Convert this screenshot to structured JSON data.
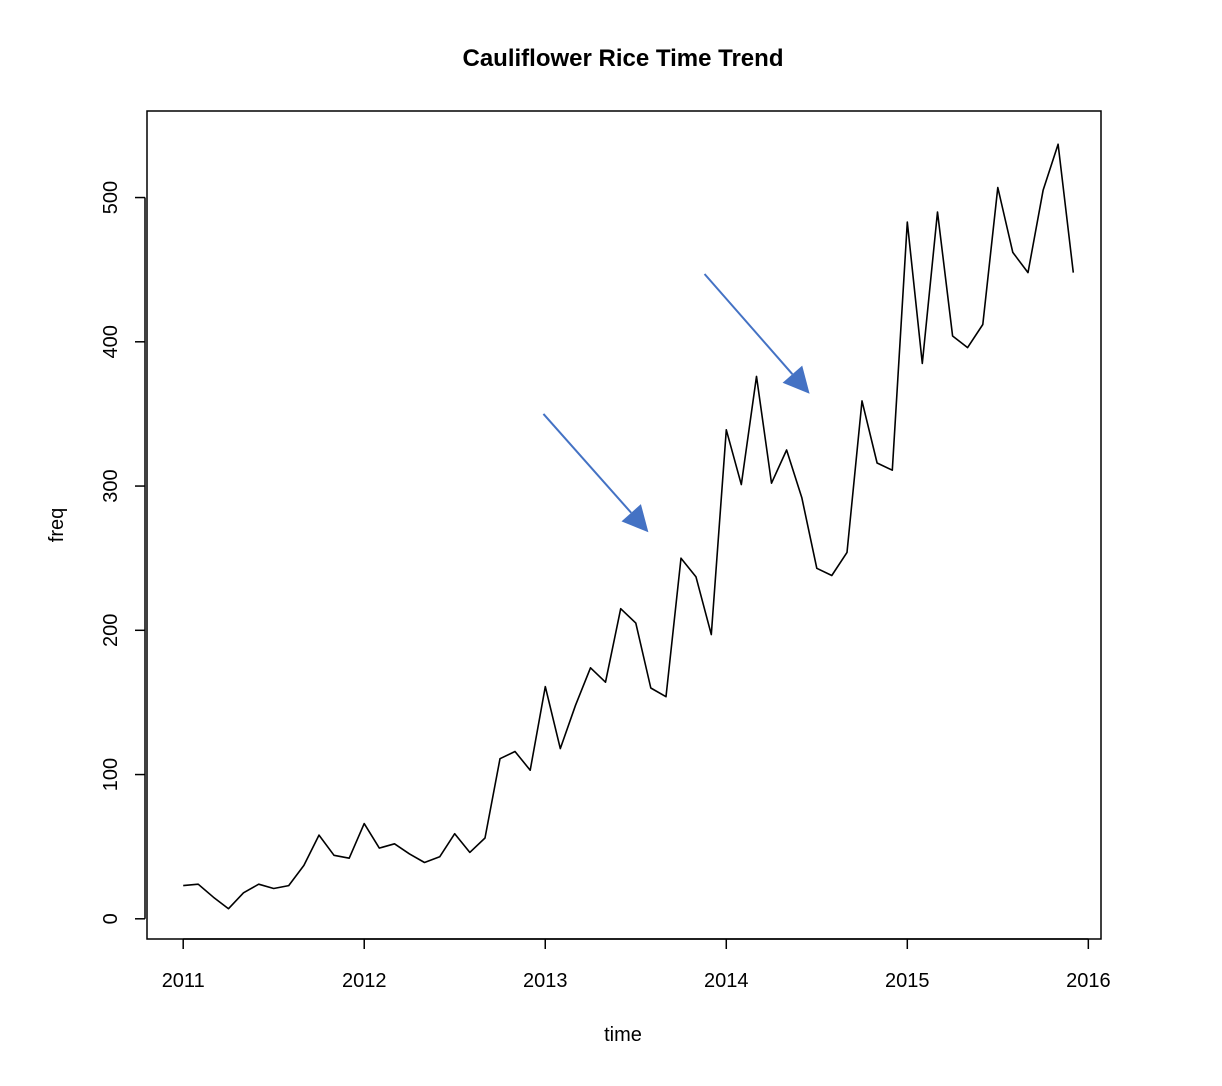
{
  "chart_data": {
    "type": "line",
    "title": "Cauliflower Rice Time Trend",
    "xlabel": "time",
    "ylabel": "freq",
    "xlim": [
      2010.8,
      2016.07
    ],
    "ylim": [
      -14,
      560
    ],
    "x_ticks": [
      2011,
      2012,
      2013,
      2014,
      2015,
      2016
    ],
    "x_tick_labels": [
      "2011",
      "2012",
      "2013",
      "2014",
      "2015",
      "2016"
    ],
    "y_ticks": [
      0,
      100,
      200,
      300,
      400,
      500
    ],
    "y_tick_labels": [
      "0",
      "100",
      "200",
      "300",
      "400",
      "500"
    ],
    "grid": false,
    "legend": "none",
    "line_color": "#000000",
    "arrow_color": "#4472C4",
    "series": [
      {
        "x": [
          2011.0,
          2011.083,
          2011.167,
          2011.25,
          2011.333,
          2011.417,
          2011.5,
          2011.583,
          2011.667,
          2011.75,
          2011.833,
          2011.917,
          2012.0,
          2012.083,
          2012.167,
          2012.25,
          2012.333,
          2012.417,
          2012.5,
          2012.583,
          2012.667,
          2012.75,
          2012.833,
          2012.917,
          2013.0,
          2013.083,
          2013.167,
          2013.25,
          2013.333,
          2013.417,
          2013.5,
          2013.583,
          2013.667,
          2013.75,
          2013.833,
          2013.917,
          2014.0,
          2014.083,
          2014.167,
          2014.25,
          2014.333,
          2014.417,
          2014.5,
          2014.583,
          2014.667,
          2014.75,
          2014.833,
          2014.917,
          2015.0,
          2015.083,
          2015.167,
          2015.25,
          2015.333,
          2015.417,
          2015.5,
          2015.583,
          2015.667,
          2015.75,
          2015.833,
          2015.917
        ],
        "values": [
          23,
          24,
          15,
          7,
          18,
          24,
          21,
          23,
          37,
          58,
          44,
          42,
          66,
          49,
          52,
          45,
          39,
          43,
          59,
          46,
          56,
          111,
          116,
          103,
          161,
          118,
          148,
          174,
          164,
          215,
          205,
          160,
          154,
          250,
          237,
          197,
          339,
          301,
          376,
          302,
          325,
          292,
          243,
          238,
          254,
          359,
          316,
          311,
          483,
          385,
          490,
          404,
          396,
          412,
          507,
          462,
          448,
          505,
          537,
          448
        ]
      }
    ],
    "annotations": [
      {
        "type": "arrow",
        "from": [
          2012.99,
          350
        ],
        "to": [
          2013.57,
          268
        ]
      },
      {
        "type": "arrow",
        "from": [
          2013.88,
          447
        ],
        "to": [
          2014.46,
          364
        ]
      }
    ]
  }
}
